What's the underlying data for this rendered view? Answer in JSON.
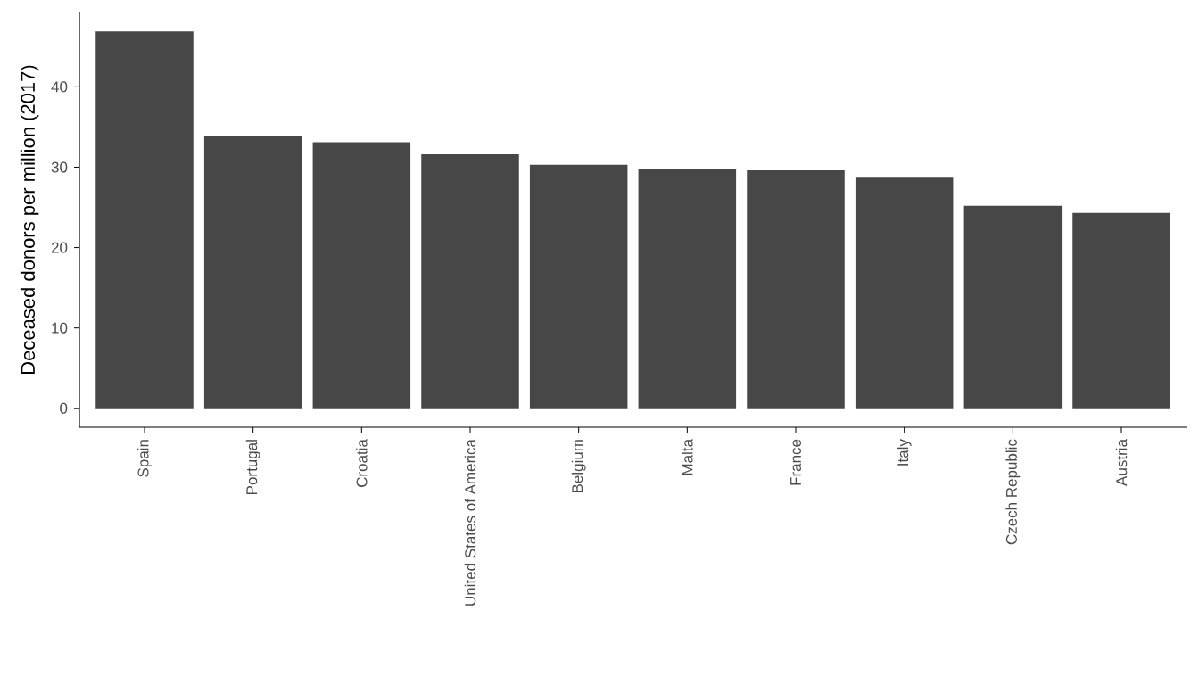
{
  "chart_data": {
    "type": "bar",
    "ylabel": "Deceased donors per million (2017)",
    "categories": [
      "Spain",
      "Portugal",
      "Croatia",
      "United States of America",
      "Belgium",
      "Malta",
      "France",
      "Italy",
      "Czech Republic",
      "Austria"
    ],
    "values": [
      46.9,
      33.9,
      33.1,
      31.6,
      30.3,
      29.8,
      29.6,
      28.7,
      25.2,
      24.3
    ],
    "color": "#474747",
    "ylim": [
      -2.35,
      49.25
    ],
    "yticks": [
      0,
      10,
      20,
      30,
      40
    ],
    "grid": false
  }
}
